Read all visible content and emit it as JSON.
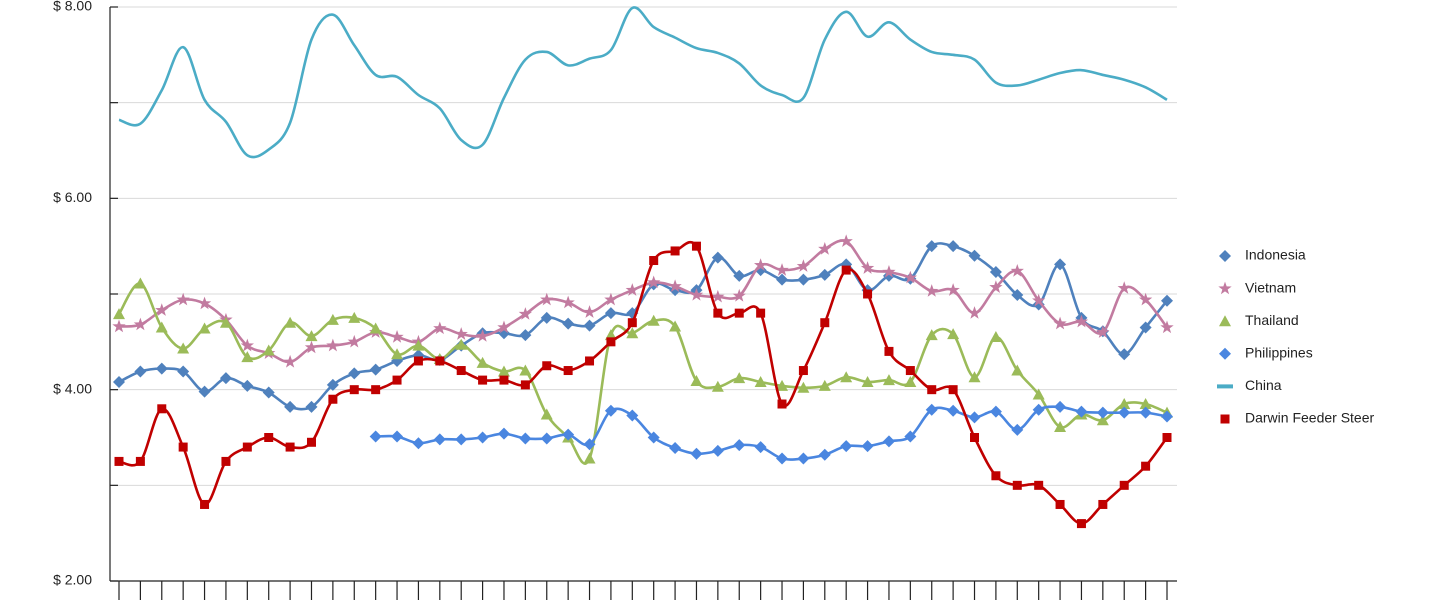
{
  "chart_data": {
    "type": "line",
    "smooth": true,
    "categories": [
      null,
      null,
      null,
      null,
      null,
      null,
      null,
      null,
      null,
      null,
      null,
      null,
      null,
      null,
      null,
      null,
      null,
      null,
      null,
      null,
      null,
      null,
      null,
      null,
      null,
      null,
      null,
      null,
      null,
      null,
      null,
      null,
      null,
      null,
      null,
      null,
      null,
      null,
      null,
      null,
      null,
      null,
      null,
      null,
      null,
      null,
      null,
      null,
      null,
      null
    ],
    "ylim": [
      2,
      8
    ],
    "yticks": [
      {
        "value": 2,
        "label": "$ 2.00"
      },
      {
        "value": 4,
        "label": "$ 4.00"
      },
      {
        "value": 6,
        "label": "$ 6.00"
      },
      {
        "value": 8,
        "label": "$ 8.00"
      }
    ],
    "yminor": [
      3,
      5,
      7
    ],
    "grid": true,
    "legend": "right",
    "series": [
      {
        "name": "Indonesia",
        "color": "#4f81bd",
        "marker": "diamond",
        "values": [
          4.08,
          4.19,
          4.22,
          4.19,
          3.98,
          4.12,
          4.04,
          3.97,
          3.82,
          3.82,
          4.05,
          4.17,
          4.21,
          4.3,
          4.36,
          4.31,
          4.46,
          4.59,
          4.59,
          4.57,
          4.75,
          4.69,
          4.67,
          4.8,
          4.8,
          5.1,
          5.04,
          5.04,
          5.38,
          5.19,
          5.25,
          5.15,
          5.15,
          5.2,
          5.31,
          5.04,
          5.19,
          5.16,
          5.5,
          5.5,
          5.4,
          5.23,
          4.99,
          4.89,
          5.31,
          4.75,
          4.61,
          4.37,
          4.65,
          4.93
        ]
      },
      {
        "name": "Vietnam",
        "color": "#c27ba0",
        "marker": "star",
        "values": [
          4.66,
          4.68,
          4.83,
          4.94,
          4.9,
          4.73,
          4.46,
          4.38,
          4.29,
          4.44,
          4.46,
          4.5,
          4.6,
          4.55,
          4.5,
          4.64,
          4.58,
          4.56,
          4.65,
          4.79,
          4.94,
          4.91,
          4.81,
          4.94,
          5.04,
          5.12,
          5.08,
          4.99,
          4.97,
          4.98,
          5.3,
          5.25,
          5.29,
          5.47,
          5.55,
          5.27,
          5.23,
          5.17,
          5.03,
          5.04,
          4.8,
          5.07,
          5.24,
          4.93,
          4.69,
          4.71,
          4.6,
          5.06,
          4.94,
          4.65
        ]
      },
      {
        "name": "Thailand",
        "color": "#9bbb59",
        "marker": "triangle",
        "values": [
          4.79,
          5.11,
          4.65,
          4.43,
          4.64,
          4.7,
          4.34,
          4.41,
          4.7,
          4.56,
          4.73,
          4.75,
          4.64,
          4.37,
          4.46,
          4.32,
          4.47,
          4.28,
          4.19,
          4.2,
          3.74,
          3.5,
          3.28,
          4.57,
          4.59,
          4.72,
          4.66,
          4.09,
          4.03,
          4.12,
          4.08,
          4.04,
          4.02,
          4.04,
          4.13,
          4.08,
          4.1,
          4.08,
          4.57,
          4.58,
          4.13,
          4.55,
          4.2,
          3.95,
          3.61,
          3.74,
          3.68,
          3.85,
          3.85,
          3.76
        ]
      },
      {
        "name": "Philippines",
        "color": "#4a86e0",
        "marker": "diamond",
        "values": [
          null,
          null,
          null,
          null,
          null,
          null,
          null,
          null,
          null,
          null,
          null,
          null,
          3.51,
          3.51,
          3.44,
          3.48,
          3.48,
          3.5,
          3.54,
          3.49,
          3.49,
          3.53,
          3.43,
          3.78,
          3.73,
          3.5,
          3.39,
          3.33,
          3.36,
          3.42,
          3.4,
          3.28,
          3.28,
          3.32,
          3.41,
          3.41,
          3.46,
          3.51,
          3.79,
          3.78,
          3.71,
          3.77,
          3.58,
          3.79,
          3.82,
          3.77,
          3.76,
          3.76,
          3.76,
          3.72
        ]
      },
      {
        "name": "China",
        "color": "#4bacc6",
        "marker": "none",
        "values": [
          6.82,
          6.78,
          7.13,
          7.58,
          7.03,
          6.8,
          6.45,
          6.51,
          6.79,
          7.66,
          7.92,
          7.6,
          7.29,
          7.27,
          7.08,
          6.94,
          6.61,
          6.56,
          7.05,
          7.45,
          7.53,
          7.39,
          7.46,
          7.55,
          7.99,
          7.79,
          7.68,
          7.57,
          7.52,
          7.41,
          7.18,
          7.08,
          7.05,
          7.66,
          7.95,
          7.69,
          7.84,
          7.66,
          7.53,
          7.5,
          7.45,
          7.21,
          7.18,
          7.24,
          7.31,
          7.34,
          7.29,
          7.24,
          7.16,
          7.03
        ]
      },
      {
        "name": "Darwin Feeder Steer",
        "color": "#c00000",
        "marker": "square",
        "values": [
          3.25,
          3.25,
          3.8,
          3.4,
          2.8,
          3.25,
          3.4,
          3.5,
          3.4,
          3.45,
          3.9,
          4.0,
          4.0,
          4.1,
          4.3,
          4.3,
          4.2,
          4.1,
          4.1,
          4.05,
          4.25,
          4.2,
          4.3,
          4.5,
          4.7,
          5.35,
          5.45,
          5.5,
          4.8,
          4.8,
          4.8,
          3.85,
          4.2,
          4.7,
          5.25,
          5.0,
          4.4,
          4.2,
          4.0,
          4.0,
          3.5,
          3.1,
          3.0,
          3.0,
          2.8,
          2.6,
          2.8,
          3.0,
          3.2,
          3.5
        ]
      }
    ]
  }
}
